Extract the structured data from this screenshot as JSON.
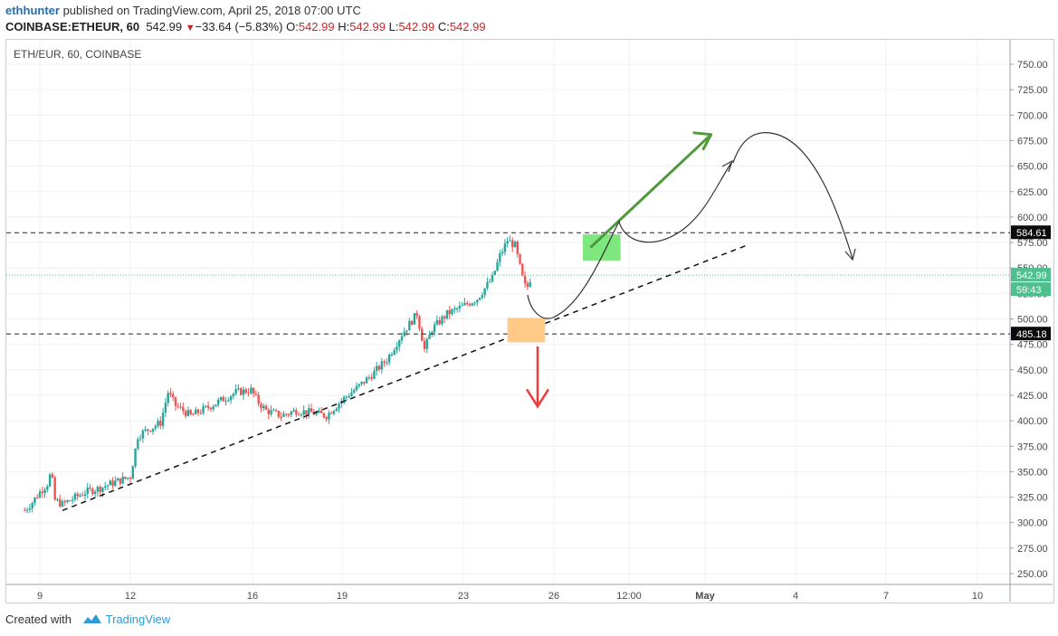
{
  "header": {
    "author": "ethhunter",
    "published_text": " published on TradingView.com, April 25, 2018 07:00 UTC",
    "symbol": "COINBASE:ETHEUR, 60",
    "last_price": "542.99",
    "change": "−33.64 (−5.83%)",
    "o_label": "O:",
    "o_value": "542.99",
    "h_label": "H:",
    "h_value": "542.99",
    "l_label": "L:",
    "l_value": "542.99",
    "c_label": "C:",
    "c_value": "542.99"
  },
  "chart_label": "ETH/EUR, 60, COINBASE",
  "footer": {
    "created_with": "Created with",
    "brand": "TradingView"
  },
  "colors": {
    "up": "#26a69a",
    "down": "#ef5350",
    "green_arrow": "#4f9a3a",
    "red_arrow": "#f03c3c",
    "green_box": "#7ee87e",
    "orange_box": "#ffc987",
    "price_tag": "#4fc08d",
    "level_tag": "#0b0b0b"
  },
  "chart_data": {
    "type": "candlestick",
    "title": "ETH/EUR, 60, COINBASE",
    "ylim": [
      237,
      783
    ],
    "y_ticks": [
      250,
      275,
      300,
      325,
      350,
      375,
      400,
      425,
      450,
      475,
      500,
      525,
      550,
      575,
      600,
      625,
      650,
      675,
      700,
      725,
      750
    ],
    "x_ticks": [
      "9",
      "12",
      "16",
      "19",
      "23",
      "26",
      "12:00",
      "May",
      "4",
      "7",
      "10"
    ],
    "series_close_path": [
      [
        "Apr 8 12:00",
        312
      ],
      [
        "Apr 8 18:00",
        320
      ],
      [
        "Apr 9 00:00",
        330
      ],
      [
        "Apr 9 06:00",
        338
      ],
      [
        "Apr 9 09:00",
        350
      ],
      [
        "Apr 9 12:00",
        322
      ],
      [
        "Apr 9 18:00",
        318
      ],
      [
        "Apr 10 00:00",
        322
      ],
      [
        "Apr 10 12:00",
        330
      ],
      [
        "Apr 11 00:00",
        334
      ],
      [
        "Apr 11 12:00",
        340
      ],
      [
        "Apr 12 00:00",
        345
      ],
      [
        "Apr 12 06:00",
        385
      ],
      [
        "Apr 12 12:00",
        390
      ],
      [
        "Apr 13 00:00",
        398
      ],
      [
        "Apr 13 06:00",
        428
      ],
      [
        "Apr 13 12:00",
        415
      ],
      [
        "Apr 14 00:00",
        405
      ],
      [
        "Apr 14 12:00",
        412
      ],
      [
        "Apr 15 00:00",
        420
      ],
      [
        "Apr 15 12:00",
        428
      ],
      [
        "Apr 16 00:00",
        430
      ],
      [
        "Apr 16 06:00",
        418
      ],
      [
        "Apr 16 12:00",
        410
      ],
      [
        "Apr 17 00:00",
        405
      ],
      [
        "Apr 17 12:00",
        410
      ],
      [
        "Apr 18 00:00",
        408
      ],
      [
        "Apr 18 12:00",
        405
      ],
      [
        "Apr 19 00:00",
        420
      ],
      [
        "Apr 19 12:00",
        432
      ],
      [
        "Apr 20 00:00",
        445
      ],
      [
        "Apr 20 12:00",
        460
      ],
      [
        "Apr 21 00:00",
        485
      ],
      [
        "Apr 21 12:00",
        505
      ],
      [
        "Apr 21 18:00",
        470
      ],
      [
        "Apr 22 00:00",
        490
      ],
      [
        "Apr 22 12:00",
        505
      ],
      [
        "Apr 23 00:00",
        512
      ],
      [
        "Apr 23 12:00",
        520
      ],
      [
        "Apr 24 00:00",
        540
      ],
      [
        "Apr 24 06:00",
        562
      ],
      [
        "Apr 24 12:00",
        577
      ],
      [
        "Apr 24 18:00",
        572
      ],
      [
        "Apr 25 00:00",
        540
      ],
      [
        "Apr 25 03:00",
        528
      ],
      [
        "Apr 25 07:00",
        542.99
      ]
    ],
    "price_lines": [
      {
        "label": "584.61",
        "value": 584.61,
        "style": "dashed"
      },
      {
        "label": "485.18",
        "value": 485.18,
        "style": "dashed"
      }
    ],
    "current_price": {
      "label": "542.99",
      "value": 542.99
    },
    "countdown": "59:43",
    "annotations": [
      {
        "type": "trendline",
        "from": [
          "Apr 9 18:00",
          312
        ],
        "to": [
          "May 2 12:00",
          573
        ],
        "style": "dashed"
      },
      {
        "type": "box",
        "color": "green",
        "x": [
          "Apr 27 00:00",
          "Apr 28 06:00"
        ],
        "y": [
          557,
          583
        ]
      },
      {
        "type": "box",
        "color": "orange",
        "x": [
          "Apr 24 12:00",
          "Apr 25 18:00"
        ],
        "y": [
          477,
          501
        ]
      },
      {
        "type": "arrow",
        "color": "green",
        "from": [
          "Apr 27 06:00",
          570
        ],
        "to": [
          "May 1 06:00",
          681
        ]
      },
      {
        "type": "arrow",
        "color": "red",
        "direction": "down",
        "at": "Apr 25 12:00",
        "from": 473,
        "to": 414
      },
      {
        "type": "curve",
        "description": "projected path: dip to ~500, rally to ~595, pullback ~573, rise to ~655"
      },
      {
        "type": "curve",
        "description": "projected path: peak ~680 then drop to ~560"
      }
    ]
  }
}
